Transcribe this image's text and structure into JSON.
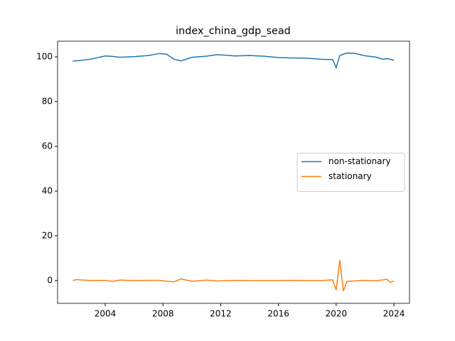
{
  "chart_data": {
    "type": "line",
    "title": "index_china_gdp_sead",
    "x": [
      2001.75,
      2002,
      2003,
      2004,
      2004.5,
      2005,
      2006,
      2007,
      2007.75,
      2008.25,
      2008.75,
      2009.25,
      2010,
      2011,
      2011.75,
      2013,
      2014,
      2015,
      2016,
      2017,
      2018,
      2019,
      2019.75,
      2020,
      2020.25,
      2020.5,
      2020.75,
      2021.25,
      2022,
      2022.75,
      2023.25,
      2023.5,
      2023.75,
      2024
    ],
    "series": [
      {
        "name": "non-stationary",
        "color": "#1f77b4",
        "values": [
          98.2,
          98.2,
          99.0,
          100.4,
          100.2,
          99.8,
          100.1,
          100.6,
          101.5,
          101.2,
          99.0,
          98.2,
          99.8,
          100.3,
          101.0,
          100.4,
          100.6,
          100.3,
          99.7,
          99.5,
          99.4,
          98.9,
          98.8,
          95.2,
          100.6,
          101.2,
          101.7,
          101.6,
          100.5,
          99.9,
          98.9,
          99.2,
          98.9,
          98.5
        ]
      },
      {
        "name": "stationary",
        "color": "#ff7f0e",
        "values": [
          0.0,
          0.4,
          0.0,
          0.1,
          -0.4,
          0.2,
          0.0,
          0.1,
          0.1,
          -0.3,
          -0.6,
          0.7,
          -0.3,
          0.2,
          -0.2,
          0.1,
          0.0,
          0.0,
          0.0,
          0.1,
          0.0,
          0.0,
          0.3,
          -4.2,
          9.2,
          -4.7,
          -0.3,
          -0.2,
          0.1,
          -0.1,
          0.3,
          0.6,
          -0.8,
          -0.2
        ]
      }
    ],
    "xlim": [
      2000.7,
      2025.08
    ],
    "xticks": [
      2004,
      2008,
      2012,
      2016,
      2020,
      2024
    ],
    "ylim": [
      -10.2,
      107.0
    ],
    "yticks": [
      0,
      20,
      40,
      60,
      80,
      100
    ],
    "legend": "center right",
    "grid": false
  }
}
